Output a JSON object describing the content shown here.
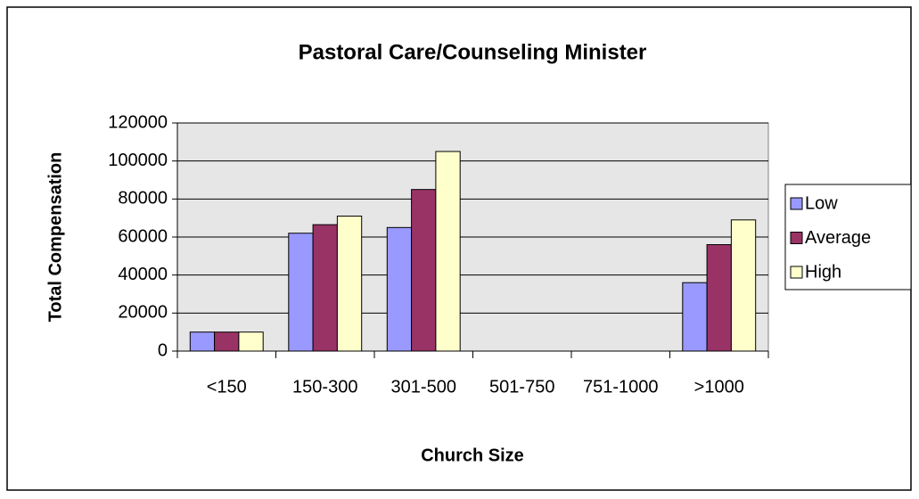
{
  "chart_data": {
    "type": "bar",
    "title": "Pastoral Care/Counseling Minister",
    "x_label": "Church Size",
    "y_label": "Total Compensation",
    "categories": [
      "<150",
      "150-300",
      "301-500",
      "501-750",
      "751-1000",
      ">1000"
    ],
    "series": [
      {
        "name": "Low",
        "color": "#9999ff",
        "values": [
          10000,
          62000,
          65000,
          null,
          null,
          36000
        ]
      },
      {
        "name": "Average",
        "color": "#993366",
        "values": [
          10000,
          66500,
          85000,
          null,
          null,
          56000
        ]
      },
      {
        "name": "High",
        "color": "#ffffcc",
        "values": [
          10000,
          71000,
          105000,
          null,
          null,
          69000
        ]
      }
    ],
    "ylim": [
      0,
      120000
    ],
    "yticks": [
      0,
      20000,
      40000,
      60000,
      80000,
      100000,
      120000
    ],
    "grid": true,
    "legend": "right"
  }
}
